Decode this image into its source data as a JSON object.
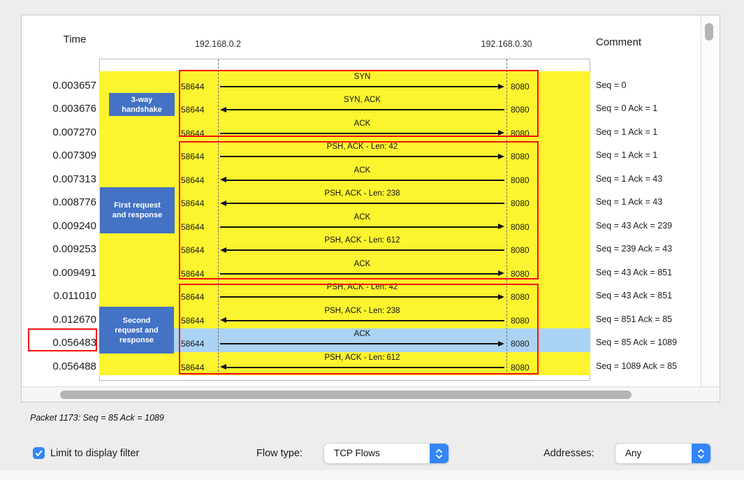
{
  "header": {
    "time_label": "Time",
    "host_left": "192.168.0.2",
    "host_right": "192.168.0.30",
    "comment_label": "Comment"
  },
  "flow_rows": [
    {
      "time": "0.003657",
      "src_port": "58644",
      "dst_port": "8080",
      "label": "SYN",
      "direction": "right",
      "comment": "Seq = 0",
      "highlighted": false,
      "time_boxed": false
    },
    {
      "time": "0.003676",
      "src_port": "58644",
      "dst_port": "8080",
      "label": "SYN, ACK",
      "direction": "left",
      "comment": "Seq = 0 Ack = 1",
      "highlighted": false,
      "time_boxed": false
    },
    {
      "time": "0.007270",
      "src_port": "58644",
      "dst_port": "8080",
      "label": "ACK",
      "direction": "right",
      "comment": "Seq = 1 Ack = 1",
      "highlighted": false,
      "time_boxed": false
    },
    {
      "time": "0.007309",
      "src_port": "58644",
      "dst_port": "8080",
      "label": "PSH, ACK - Len: 42",
      "direction": "right",
      "comment": "Seq = 1 Ack = 1",
      "highlighted": false,
      "time_boxed": false
    },
    {
      "time": "0.007313",
      "src_port": "58644",
      "dst_port": "8080",
      "label": "ACK",
      "direction": "left",
      "comment": "Seq = 1 Ack = 43",
      "highlighted": false,
      "time_boxed": false
    },
    {
      "time": "0.008776",
      "src_port": "58644",
      "dst_port": "8080",
      "label": "PSH, ACK - Len: 238",
      "direction": "left",
      "comment": "Seq = 1 Ack = 43",
      "highlighted": false,
      "time_boxed": false
    },
    {
      "time": "0.009240",
      "src_port": "58644",
      "dst_port": "8080",
      "label": "ACK",
      "direction": "right",
      "comment": "Seq = 43 Ack = 239",
      "highlighted": false,
      "time_boxed": false
    },
    {
      "time": "0.009253",
      "src_port": "58644",
      "dst_port": "8080",
      "label": "PSH, ACK - Len: 612",
      "direction": "left",
      "comment": "Seq = 239 Ack = 43",
      "highlighted": false,
      "time_boxed": false
    },
    {
      "time": "0.009491",
      "src_port": "58644",
      "dst_port": "8080",
      "label": "ACK",
      "direction": "right",
      "comment": "Seq = 43 Ack = 851",
      "highlighted": false,
      "time_boxed": false
    },
    {
      "time": "0.011010",
      "src_port": "58644",
      "dst_port": "8080",
      "label": "PSH, ACK - Len: 42",
      "direction": "right",
      "comment": "Seq = 43 Ack = 851",
      "highlighted": false,
      "time_boxed": false
    },
    {
      "time": "0.012670",
      "src_port": "58644",
      "dst_port": "8080",
      "label": "PSH, ACK - Len: 238",
      "direction": "left",
      "comment": "Seq = 851 Ack = 85",
      "highlighted": false,
      "time_boxed": false
    },
    {
      "time": "0.056483",
      "src_port": "58644",
      "dst_port": "8080",
      "label": "ACK",
      "direction": "right",
      "comment": "Seq = 85 Ack = 1089",
      "highlighted": true,
      "time_boxed": true
    },
    {
      "time": "0.056488",
      "src_port": "58644",
      "dst_port": "8080",
      "label": "PSH, ACK - Len: 612",
      "direction": "left",
      "comment": "Seq = 1089 Ack = 85",
      "highlighted": false,
      "time_boxed": false
    }
  ],
  "annotations": {
    "groups": [
      {
        "label": "3-way handshake",
        "lines": [
          "3-way",
          "handshake"
        ],
        "rows": [
          1,
          3
        ]
      },
      {
        "label": "First request and response",
        "lines": [
          "First request",
          "and response"
        ],
        "rows": [
          4,
          9
        ]
      },
      {
        "label": "Second request and response",
        "lines": [
          "Second",
          "request and",
          "response"
        ],
        "rows": [
          10,
          13
        ]
      }
    ],
    "boxed_time_value": "0.056483"
  },
  "status_text": "Packet 1173: Seq = 85 Ack = 1089",
  "controls": {
    "limit_filter": {
      "label": "Limit to display filter",
      "checked": true
    },
    "flow_type": {
      "label": "Flow type:",
      "value": "TCP Flows"
    },
    "addresses": {
      "label": "Addresses:",
      "value": "Any"
    }
  },
  "colors": {
    "row_yellow": "#fcf42e",
    "row_highlight": "#abd3f3",
    "annotation_red": "#f5100c",
    "annotation_blue": "#4472c4",
    "accent_blue": "#3286f7"
  }
}
